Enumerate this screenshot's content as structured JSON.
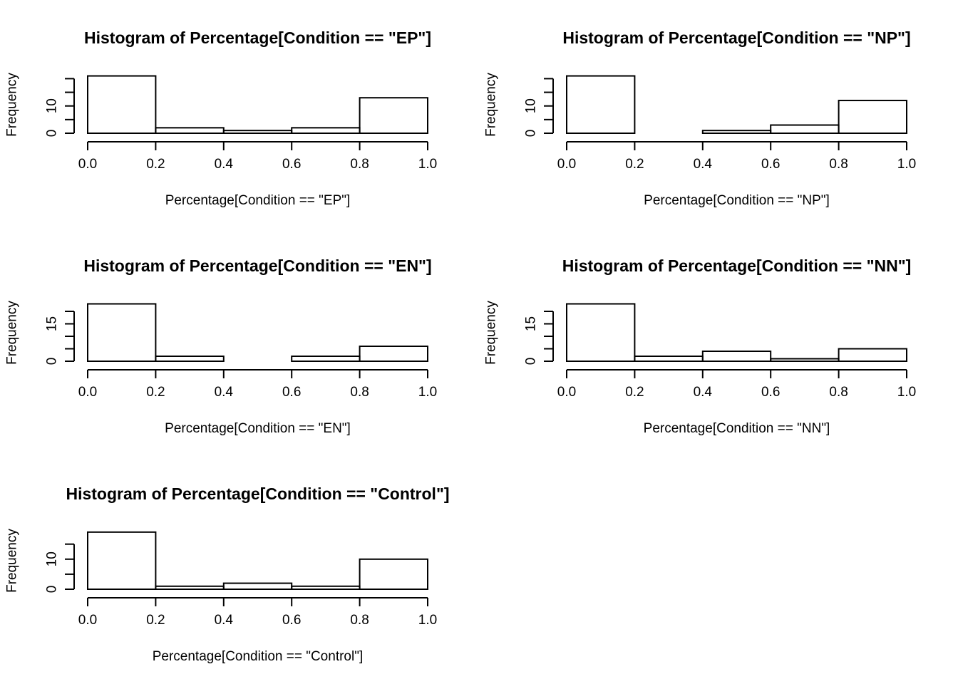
{
  "chart_data": [
    {
      "type": "bar",
      "title": "Histogram of Percentage[Condition == \"EP\"]",
      "xlabel": "Percentage[Condition == \"EP\"]",
      "ylabel": "Frequency",
      "bins": [
        [
          0.0,
          0.2
        ],
        [
          0.2,
          0.4
        ],
        [
          0.4,
          0.6
        ],
        [
          0.6,
          0.8
        ],
        [
          0.8,
          1.0
        ]
      ],
      "values": [
        21,
        2,
        1,
        2,
        13
      ],
      "xlim": [
        0,
        1
      ],
      "ylim": [
        0,
        21
      ],
      "x_ticks": [
        "0.0",
        "0.2",
        "0.4",
        "0.6",
        "0.8",
        "1.0"
      ],
      "y_ticks": [
        0,
        5,
        10,
        15,
        20
      ],
      "y_tick_labels": [
        "0",
        "",
        "10",
        "",
        ""
      ]
    },
    {
      "type": "bar",
      "title": "Histogram of Percentage[Condition == \"NP\"]",
      "xlabel": "Percentage[Condition == \"NP\"]",
      "ylabel": "Frequency",
      "bins": [
        [
          0.0,
          0.2
        ],
        [
          0.2,
          0.4
        ],
        [
          0.4,
          0.6
        ],
        [
          0.6,
          0.8
        ],
        [
          0.8,
          1.0
        ]
      ],
      "values": [
        21,
        0,
        1,
        3,
        12
      ],
      "xlim": [
        0,
        1
      ],
      "ylim": [
        0,
        21
      ],
      "x_ticks": [
        "0.0",
        "0.2",
        "0.4",
        "0.6",
        "0.8",
        "1.0"
      ],
      "y_ticks": [
        0,
        5,
        10,
        15,
        20
      ],
      "y_tick_labels": [
        "0",
        "",
        "10",
        "",
        ""
      ]
    },
    {
      "type": "bar",
      "title": "Histogram of Percentage[Condition == \"EN\"]",
      "xlabel": "Percentage[Condition == \"EN\"]",
      "ylabel": "Frequency",
      "bins": [
        [
          0.0,
          0.2
        ],
        [
          0.2,
          0.4
        ],
        [
          0.4,
          0.6
        ],
        [
          0.6,
          0.8
        ],
        [
          0.8,
          1.0
        ]
      ],
      "values": [
        23,
        2,
        0,
        2,
        6
      ],
      "xlim": [
        0,
        1
      ],
      "ylim": [
        0,
        23
      ],
      "x_ticks": [
        "0.0",
        "0.2",
        "0.4",
        "0.6",
        "0.8",
        "1.0"
      ],
      "y_ticks": [
        0,
        5,
        10,
        15,
        20
      ],
      "y_tick_labels": [
        "0",
        "",
        "",
        "15",
        ""
      ]
    },
    {
      "type": "bar",
      "title": "Histogram of Percentage[Condition == \"NN\"]",
      "xlabel": "Percentage[Condition == \"NN\"]",
      "ylabel": "Frequency",
      "bins": [
        [
          0.0,
          0.2
        ],
        [
          0.2,
          0.4
        ],
        [
          0.4,
          0.6
        ],
        [
          0.6,
          0.8
        ],
        [
          0.8,
          1.0
        ]
      ],
      "values": [
        23,
        2,
        4,
        1,
        5
      ],
      "xlim": [
        0,
        1
      ],
      "ylim": [
        0,
        23
      ],
      "x_ticks": [
        "0.0",
        "0.2",
        "0.4",
        "0.6",
        "0.8",
        "1.0"
      ],
      "y_ticks": [
        0,
        5,
        10,
        15,
        20
      ],
      "y_tick_labels": [
        "0",
        "",
        "",
        "15",
        ""
      ]
    },
    {
      "type": "bar",
      "title": "Histogram of Percentage[Condition == \"Control\"]",
      "xlabel": "Percentage[Condition == \"Control\"]",
      "ylabel": "Frequency",
      "bins": [
        [
          0.0,
          0.2
        ],
        [
          0.2,
          0.4
        ],
        [
          0.4,
          0.6
        ],
        [
          0.6,
          0.8
        ],
        [
          0.8,
          1.0
        ]
      ],
      "values": [
        19,
        1,
        2,
        1,
        10
      ],
      "xlim": [
        0,
        1
      ],
      "ylim": [
        0,
        19
      ],
      "x_ticks": [
        "0.0",
        "0.2",
        "0.4",
        "0.6",
        "0.8",
        "1.0"
      ],
      "y_ticks": [
        0,
        5,
        10,
        15
      ],
      "y_tick_labels": [
        "0",
        "",
        "10",
        ""
      ]
    }
  ]
}
